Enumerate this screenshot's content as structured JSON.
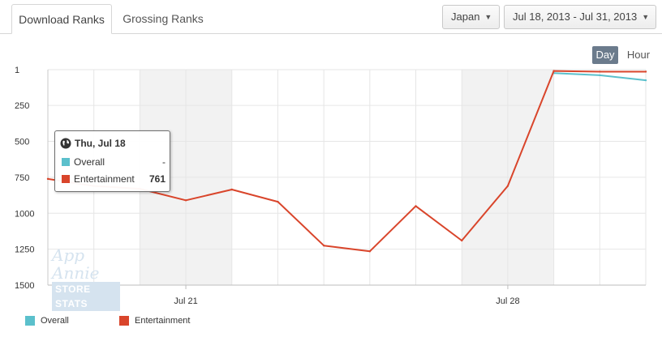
{
  "tabs": {
    "download": "Download Ranks",
    "grossing": "Grossing Ranks"
  },
  "filters": {
    "country": "Japan",
    "date_range": "Jul 18, 2013 - Jul 31, 2013"
  },
  "granularity": {
    "day": "Day",
    "hour": "Hour",
    "selected": "Day"
  },
  "tooltip": {
    "title": "Thu, Jul 18",
    "rows": [
      {
        "name": "Overall",
        "value": "-"
      },
      {
        "name": "Entertainment",
        "value": "761"
      }
    ]
  },
  "watermark": {
    "line1": "App Annie",
    "line2": "STORE STATS"
  },
  "colors": {
    "overall": "#5bc0cc",
    "entertainment": "#d9452b",
    "weekend_band": "#f2f2f2",
    "grid": "#e6e6e6"
  },
  "chart_data": {
    "type": "line",
    "x": [
      "Jul 18",
      "Jul 19",
      "Jul 20",
      "Jul 21",
      "Jul 22",
      "Jul 23",
      "Jul 24",
      "Jul 25",
      "Jul 26",
      "Jul 27",
      "Jul 28",
      "Jul 29",
      "Jul 30",
      "Jul 31"
    ],
    "x_tick_labels": [
      {
        "index": 3,
        "label": "Jul 21"
      },
      {
        "index": 10,
        "label": "Jul 28"
      }
    ],
    "y_ticks": [
      1,
      250,
      500,
      750,
      1000,
      1250,
      1500
    ],
    "ylim": [
      1,
      1500
    ],
    "y_inverted": true,
    "weekend_bands": [
      [
        2,
        4
      ],
      [
        9,
        11
      ]
    ],
    "grid": true,
    "legend_position": "bottom-left",
    "series": [
      {
        "name": "Overall",
        "values": [
          null,
          null,
          null,
          null,
          null,
          null,
          null,
          null,
          null,
          null,
          null,
          25,
          40,
          75
        ]
      },
      {
        "name": "Entertainment",
        "values": [
          761,
          810,
          830,
          910,
          835,
          920,
          1225,
          1265,
          950,
          1190,
          810,
          10,
          15,
          15
        ]
      }
    ]
  }
}
